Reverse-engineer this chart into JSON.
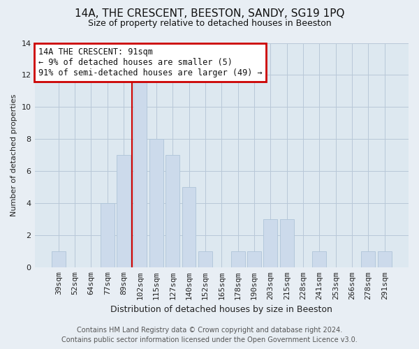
{
  "title": "14A, THE CRESCENT, BEESTON, SANDY, SG19 1PQ",
  "subtitle": "Size of property relative to detached houses in Beeston",
  "xlabel": "Distribution of detached houses by size in Beeston",
  "ylabel": "Number of detached properties",
  "bin_labels": [
    "39sqm",
    "52sqm",
    "64sqm",
    "77sqm",
    "89sqm",
    "102sqm",
    "115sqm",
    "127sqm",
    "140sqm",
    "152sqm",
    "165sqm",
    "178sqm",
    "190sqm",
    "203sqm",
    "215sqm",
    "228sqm",
    "241sqm",
    "253sqm",
    "266sqm",
    "278sqm",
    "291sqm"
  ],
  "bin_counts": [
    1,
    0,
    0,
    4,
    7,
    12,
    8,
    7,
    5,
    1,
    0,
    1,
    1,
    3,
    3,
    0,
    1,
    0,
    0,
    1,
    1
  ],
  "bar_color": "#ccdaeb",
  "bar_edge_color": "#aec4d8",
  "vline_x": 4.5,
  "vline_color": "#cc0000",
  "annotation_text": "14A THE CRESCENT: 91sqm\n← 9% of detached houses are smaller (5)\n91% of semi-detached houses are larger (49) →",
  "annotation_box_color": "#ffffff",
  "annotation_box_edge_color": "#cc0000",
  "ylim": [
    0,
    14
  ],
  "yticks": [
    0,
    2,
    4,
    6,
    8,
    10,
    12,
    14
  ],
  "footer_line1": "Contains HM Land Registry data © Crown copyright and database right 2024.",
  "footer_line2": "Contains public sector information licensed under the Open Government Licence v3.0.",
  "bg_color": "#e8eef4",
  "plot_bg_color": "#dde8f0",
  "grid_color": "#b8c8d8",
  "title_fontsize": 11,
  "subtitle_fontsize": 9,
  "ylabel_fontsize": 8,
  "xlabel_fontsize": 9,
  "tick_fontsize": 8,
  "annotation_fontsize": 8.5,
  "footer_fontsize": 7
}
